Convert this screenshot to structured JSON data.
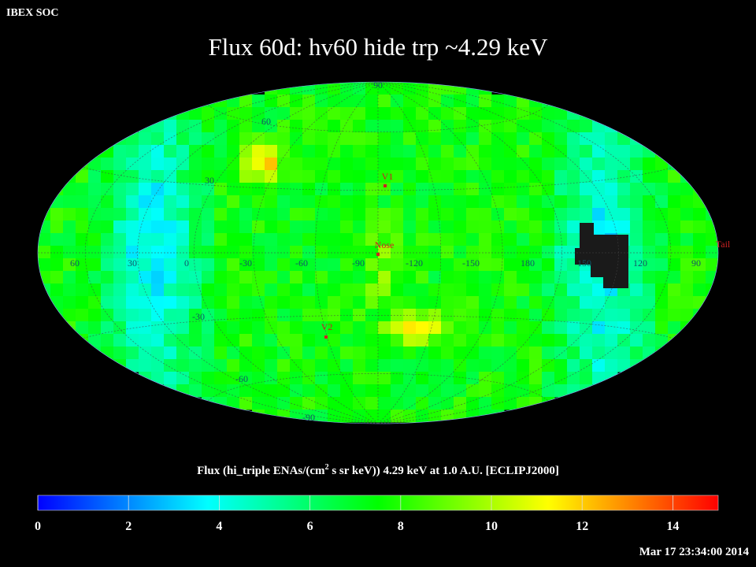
{
  "header": {
    "corner_label": "IBEX SOC",
    "title": "Flux   60d: hv60 hide trp ~4.29 keV"
  },
  "map": {
    "projection": "aitoff-hammer",
    "grid": true,
    "longitude_labels": [
      "60",
      "30",
      "0",
      "-30",
      "-60",
      "-90",
      "-120",
      "-150",
      "180",
      "150",
      "120",
      "90"
    ],
    "latitude_labels": [
      "90",
      "60",
      "30",
      "-30",
      "-60",
      "-90"
    ],
    "markers": [
      {
        "name": "V1",
        "color": "#cc2222"
      },
      {
        "name": "Nose",
        "color": "#cc2222"
      },
      {
        "name": "V2",
        "color": "#cc2222"
      },
      {
        "name": "Tail",
        "color": "#cc2222"
      }
    ],
    "masked_region_color": "#1a1a1a"
  },
  "colorbar": {
    "title_main": "Flux (hi_triple ENAs/(cm",
    "title_sup": "2",
    "title_rest": " s sr keV))  4.29 keV at 1.0 A.U. [ECLIPJ2000]",
    "min": 0,
    "max": 15,
    "ticks": [
      "0",
      "2",
      "4",
      "6",
      "8",
      "10",
      "12",
      "14"
    ],
    "colors": [
      "#0000ff",
      "#0080ff",
      "#00ffff",
      "#00ff80",
      "#00ff00",
      "#80ff00",
      "#ffff00",
      "#ff8000",
      "#ff0000"
    ]
  },
  "footer": {
    "timestamp": "Mar 17 23:34:00 2014"
  }
}
